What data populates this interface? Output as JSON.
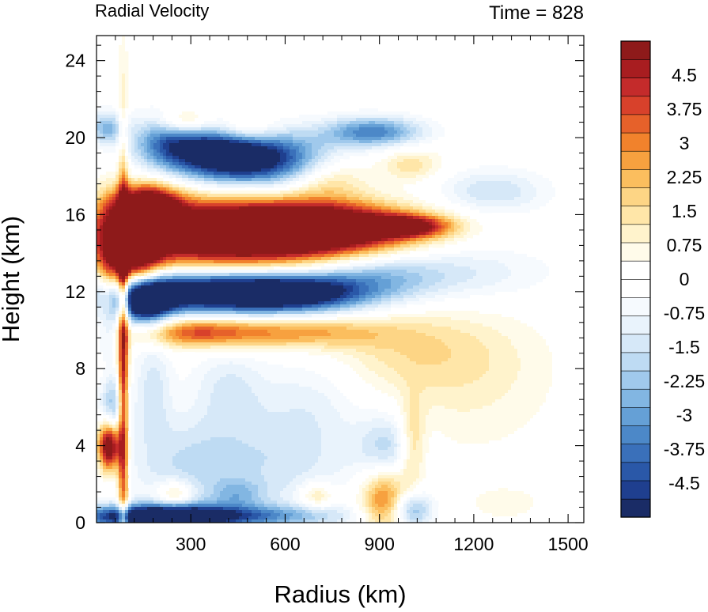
{
  "chart_data": {
    "type": "heatmap",
    "title": "Radial Velocity",
    "subtitle": "Time = 828",
    "xlabel": "Radius (km)",
    "ylabel": "Height (km)",
    "xlim": [
      0,
      1550
    ],
    "ylim": [
      0,
      25.3
    ],
    "xticks": [
      "300",
      "600",
      "900",
      "1200",
      "1500"
    ],
    "xtick_values": [
      300,
      600,
      900,
      1200,
      1500
    ],
    "yticks": [
      "0",
      "4",
      "8",
      "12",
      "16",
      "20",
      "24"
    ],
    "ytick_values": [
      0,
      4,
      8,
      12,
      16,
      20,
      24
    ],
    "colorbar": {
      "min": -5.25,
      "max": 5.25,
      "step": 0.375,
      "labels": [
        "4.5",
        "3.75",
        "3",
        "2.25",
        "1.5",
        "0.75",
        "0",
        "-0.75",
        "-1.5",
        "-2.25",
        "-3",
        "-3.75",
        "-4.5"
      ],
      "label_values": [
        4.5,
        3.75,
        3,
        2.25,
        1.5,
        0.75,
        0,
        -0.75,
        -1.5,
        -2.25,
        -3,
        -3.75,
        -4.5
      ],
      "colors": [
        "#1a2c66",
        "#1f3f8f",
        "#2a58a8",
        "#3a70ba",
        "#4c88c8",
        "#65a0d6",
        "#82b6e2",
        "#a0c9ec",
        "#bedbf3",
        "#d6e8f8",
        "#e9f3fc",
        "#f6fafe",
        "#ffffff",
        "#ffffff",
        "#fffbea",
        "#fff3cc",
        "#ffe6a8",
        "#fdd585",
        "#fbbe5e",
        "#f7a13f",
        "#f1822c",
        "#e6612a",
        "#d8412b",
        "#c42b2b",
        "#a81d20",
        "#8e1a1a"
      ]
    },
    "features": [
      {
        "x": 400,
        "y": 15.0,
        "sx": 300,
        "sy": 1.3,
        "v": 7
      },
      {
        "x": 720,
        "y": 15.3,
        "sx": 200,
        "sy": 0.8,
        "v": 6
      },
      {
        "x": 1000,
        "y": 15.4,
        "sx": 90,
        "sy": 0.4,
        "v": 4
      },
      {
        "x": 160,
        "y": 16.4,
        "sx": 70,
        "sy": 0.8,
        "v": 6
      },
      {
        "x": 120,
        "y": 13.5,
        "sx": 60,
        "sy": 1.4,
        "v": 5
      },
      {
        "x": 340,
        "y": 12.0,
        "sx": 230,
        "sy": 0.8,
        "v": -6.5
      },
      {
        "x": 640,
        "y": 11.9,
        "sx": 160,
        "sy": 0.7,
        "v": -4.5
      },
      {
        "x": 150,
        "y": 11.5,
        "sx": 60,
        "sy": 0.9,
        "v": -6
      },
      {
        "x": 880,
        "y": 12.7,
        "sx": 150,
        "sy": 0.9,
        "v": -2
      },
      {
        "x": 1150,
        "y": 13.0,
        "sx": 200,
        "sy": 1.0,
        "v": -1.2
      },
      {
        "x": 300,
        "y": 9.9,
        "sx": 140,
        "sy": 0.55,
        "v": 3.2
      },
      {
        "x": 620,
        "y": 9.9,
        "sx": 200,
        "sy": 0.6,
        "v": 2.6
      },
      {
        "x": 1000,
        "y": 9.0,
        "sx": 220,
        "sy": 1.5,
        "v": 1.2
      },
      {
        "x": 1180,
        "y": 7.0,
        "sx": 200,
        "sy": 2.5,
        "v": 0.8
      },
      {
        "x": 380,
        "y": 19.2,
        "sx": 110,
        "sy": 1.0,
        "v": -5
      },
      {
        "x": 570,
        "y": 18.8,
        "sx": 140,
        "sy": 1.0,
        "v": -4.5
      },
      {
        "x": 880,
        "y": 20.3,
        "sx": 110,
        "sy": 0.55,
        "v": -3.5
      },
      {
        "x": 220,
        "y": 19.8,
        "sx": 80,
        "sy": 1.0,
        "v": -3
      },
      {
        "x": 1260,
        "y": 17.2,
        "sx": 120,
        "sy": 0.8,
        "v": -1.6
      },
      {
        "x": 280,
        "y": 20.8,
        "sx": 60,
        "sy": 0.5,
        "v": 2.5
      },
      {
        "x": 470,
        "y": 20.4,
        "sx": 70,
        "sy": 0.5,
        "v": 2.0
      },
      {
        "x": 730,
        "y": 18.0,
        "sx": 90,
        "sy": 0.9,
        "v": 2.0
      },
      {
        "x": 1000,
        "y": 18.6,
        "sx": 70,
        "sy": 0.6,
        "v": 1.5
      },
      {
        "x": 30,
        "y": 20.5,
        "sx": 40,
        "sy": 0.6,
        "v": -2.5
      },
      {
        "x": 40,
        "y": 4.0,
        "sx": 25,
        "sy": 0.9,
        "v": 6.5
      },
      {
        "x": 55,
        "y": 6.0,
        "sx": 30,
        "sy": 1.2,
        "v": -2.5
      },
      {
        "x": 40,
        "y": 13.0,
        "sx": 30,
        "sy": 2.5,
        "v": 1.8
      },
      {
        "x": 40,
        "y": 10.0,
        "sx": 30,
        "sy": 1.0,
        "v": -2.0
      },
      {
        "x": 85,
        "y": 8.0,
        "sx": 12,
        "sy": 8.0,
        "v": 5
      },
      {
        "x": 200,
        "y": 0.3,
        "sx": 180,
        "sy": 0.45,
        "v": -7
      },
      {
        "x": 560,
        "y": 0.35,
        "sx": 200,
        "sy": 0.4,
        "v": -2
      },
      {
        "x": 920,
        "y": 1.2,
        "sx": 55,
        "sy": 1.2,
        "v": 3.5
      },
      {
        "x": 1005,
        "y": 4.0,
        "sx": 30,
        "sy": 1.6,
        "v": 2.0
      },
      {
        "x": 1000,
        "y": 0.7,
        "sx": 45,
        "sy": 0.7,
        "v": -3.0
      },
      {
        "x": 930,
        "y": 3.8,
        "sx": 70,
        "sy": 1.3,
        "v": -2.0
      },
      {
        "x": 300,
        "y": 3.0,
        "sx": 140,
        "sy": 1.8,
        "v": -1.6
      },
      {
        "x": 600,
        "y": 3.0,
        "sx": 160,
        "sy": 2.0,
        "v": -1.2
      },
      {
        "x": 250,
        "y": 1.5,
        "sx": 40,
        "sy": 0.5,
        "v": 2.0
      },
      {
        "x": 450,
        "y": 1.5,
        "sx": 60,
        "sy": 0.5,
        "v": -1.5
      },
      {
        "x": 700,
        "y": 1.4,
        "sx": 40,
        "sy": 0.5,
        "v": 1.8
      },
      {
        "x": 420,
        "y": 7.0,
        "sx": 80,
        "sy": 1.5,
        "v": -1.2
      },
      {
        "x": 680,
        "y": 6.5,
        "sx": 120,
        "sy": 2.0,
        "v": -0.9
      },
      {
        "x": 180,
        "y": 7.0,
        "sx": 40,
        "sy": 2.0,
        "v": -1.4
      },
      {
        "x": 1300,
        "y": 1.0,
        "sx": 80,
        "sy": 0.6,
        "v": 0.7
      }
    ]
  }
}
